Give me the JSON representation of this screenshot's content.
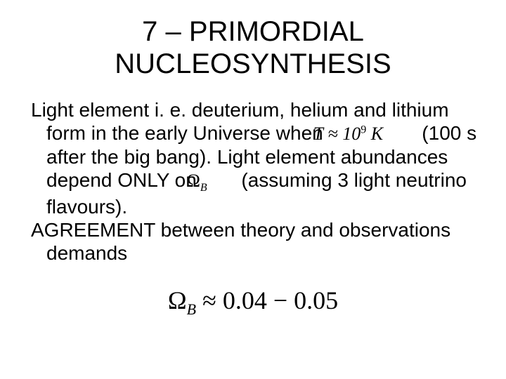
{
  "title_line1": "7 – PRIMORDIAL",
  "title_line2": "NUCLEOSYNTHESIS",
  "para1_a": "Light element i. e. deuterium, helium and lithium form in the early Universe when ",
  "t_var": "T",
  "approx_sym": "≈",
  "t_exp_base": "10",
  "t_exp_pow": "9",
  "t_unit": "K",
  "para1_b": " (100 s after the big bang). Light element abundances depend ONLY on ",
  "omega": "Ω",
  "omega_sub": "B",
  "para1_c": " (assuming 3 light neutrino flavours).",
  "para2": "AGREEMENT between theory and observations demands",
  "final_rhs": " ≈ 0.04 − 0.05",
  "colors": {
    "text": "#000000",
    "background": "#ffffff"
  },
  "fonts": {
    "body_family": "Arial",
    "formula_family": "Times New Roman",
    "title_size_pt": 40,
    "body_size_pt": 28,
    "final_eq_size_pt": 36
  }
}
